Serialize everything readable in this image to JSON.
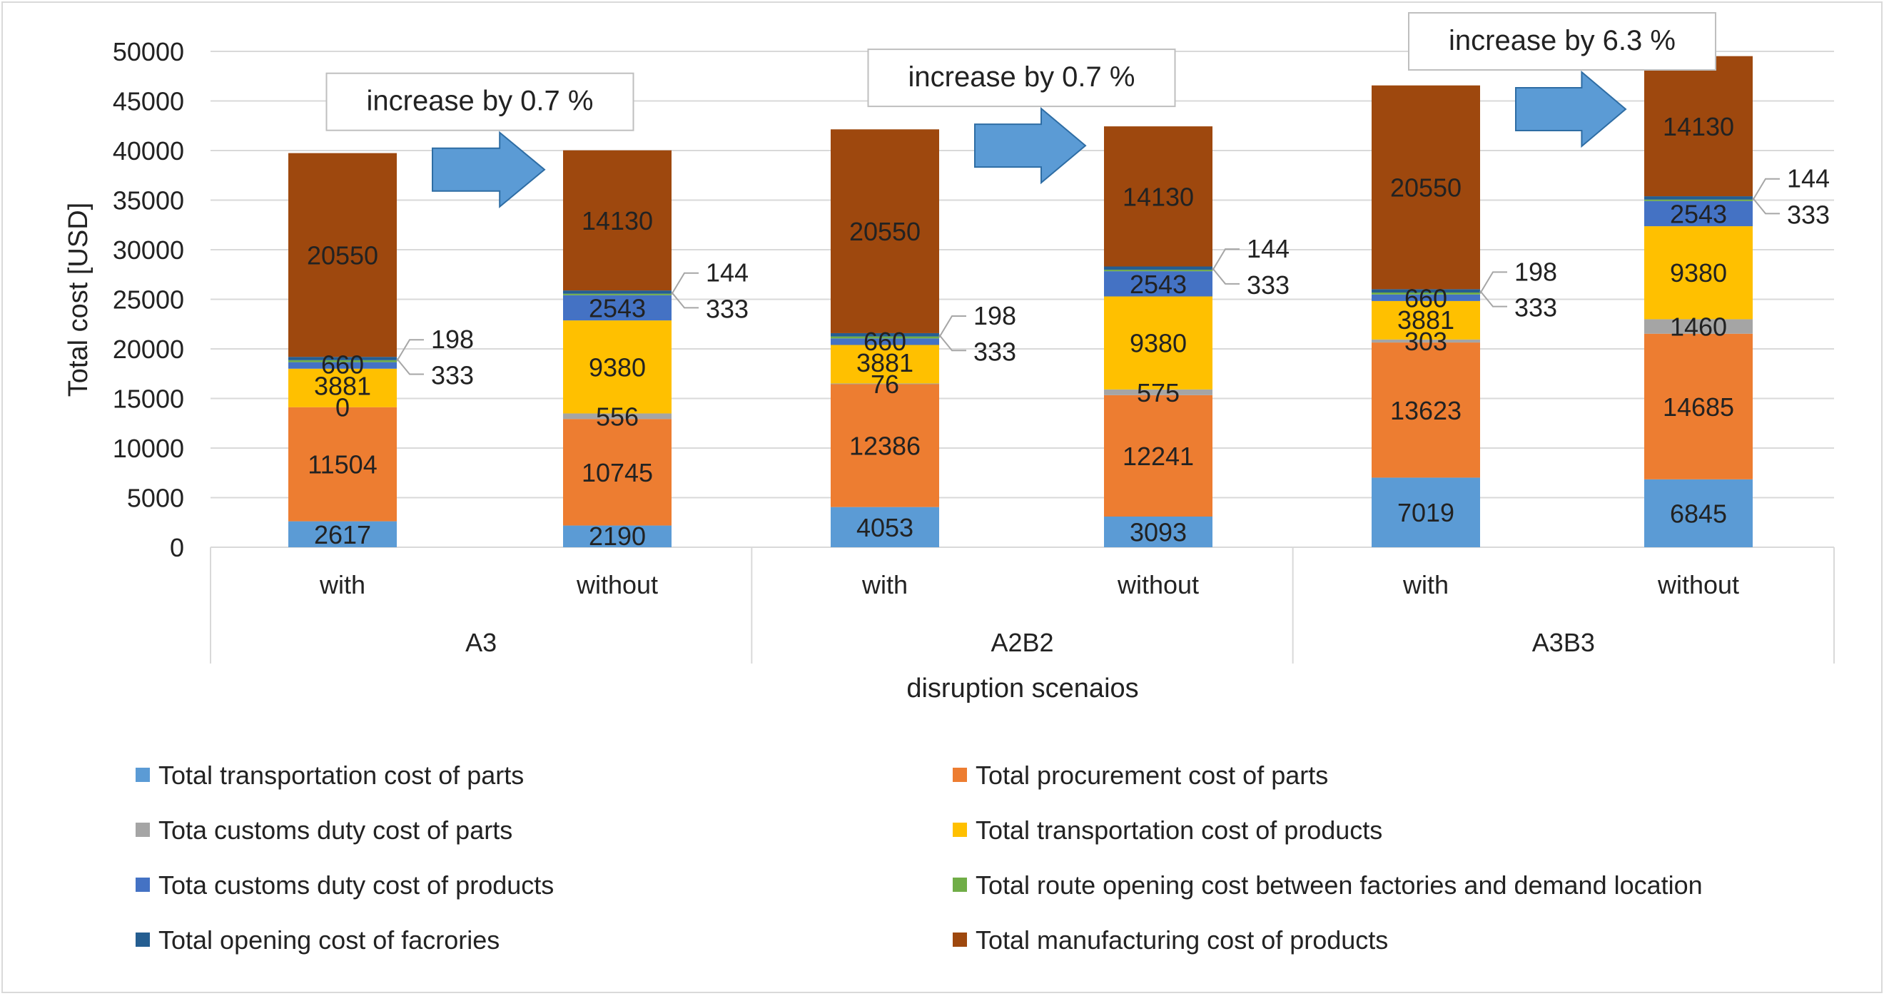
{
  "chart_data": {
    "type": "bar",
    "stacked": true,
    "title": "",
    "xlabel": "disruption scenaios",
    "ylabel": "Total cost [USD]",
    "ylim": [
      0,
      50000
    ],
    "yticks": [
      0,
      5000,
      10000,
      15000,
      20000,
      25000,
      30000,
      35000,
      40000,
      45000,
      50000
    ],
    "grid": true,
    "legend_position": "bottom",
    "groups": [
      "A3",
      "A2B2",
      "A3B3"
    ],
    "categories": [
      "with",
      "without",
      "with",
      "without",
      "with",
      "without"
    ],
    "series": [
      {
        "name": "Total transportation cost of parts",
        "color": "#5b9bd5",
        "values": [
          2617,
          2190,
          4053,
          3093,
          7019,
          6845
        ]
      },
      {
        "name": "Total procurement cost of parts",
        "color": "#ed7d31",
        "values": [
          11504,
          10745,
          12386,
          12241,
          13623,
          14685
        ]
      },
      {
        "name": "Tota customs duty cost of parts",
        "color": "#a5a5a5",
        "values": [
          0,
          556,
          76,
          575,
          303,
          1460
        ]
      },
      {
        "name": "Total  transportation cost of products",
        "color": "#ffc000",
        "values": [
          3881,
          9380,
          3881,
          9380,
          3881,
          9380
        ]
      },
      {
        "name": "Tota customs duty cost of products",
        "color": "#4472c4",
        "values": [
          660,
          2543,
          660,
          2543,
          660,
          2543
        ]
      },
      {
        "name": "Total route opening cost between factories and demand location",
        "color": "#70ad47",
        "values": [
          198,
          144,
          198,
          144,
          198,
          144
        ]
      },
      {
        "name": "Total opening cost of facrories",
        "color": "#255e91",
        "values": [
          333,
          333,
          333,
          333,
          333,
          333
        ]
      },
      {
        "name": "Total manufacturing cost of products",
        "color": "#9e480e",
        "values": [
          20550,
          14130,
          20550,
          14130,
          20550,
          14130
        ]
      }
    ],
    "annotations": [
      "increase by 0.7 %",
      "increase by 0.7 %",
      "increase by 6.3 %"
    ]
  }
}
